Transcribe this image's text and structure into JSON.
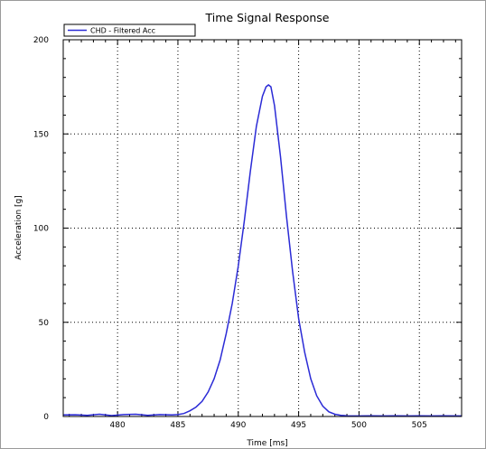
{
  "chart_data": {
    "type": "line",
    "title": "Time Signal Response",
    "xlabel": "Time [ms]",
    "ylabel": "Acceleration [g]",
    "xlim": [
      475.5,
      508.5
    ],
    "ylim": [
      0,
      200
    ],
    "x_ticks": [
      480,
      485,
      490,
      495,
      500,
      505
    ],
    "y_ticks": [
      0,
      50,
      100,
      150,
      200
    ],
    "grid": true,
    "grid_style": "dotted",
    "legend_position": "top-left",
    "series": [
      {
        "name": "CHD - Filtered Acc",
        "color": "#2b2bd6",
        "x": [
          475.5,
          476.5,
          477.5,
          478.5,
          479.5,
          480.5,
          481.5,
          482.5,
          483.5,
          484.5,
          485,
          485.5,
          486,
          486.5,
          487,
          487.5,
          488,
          488.5,
          489,
          489.5,
          490,
          490.5,
          491,
          491.5,
          492,
          492.3,
          492.5,
          492.7,
          493,
          493.5,
          494,
          494.5,
          495,
          495.5,
          496,
          496.5,
          497,
          497.5,
          498,
          498.5,
          499,
          500,
          501,
          502,
          503,
          504,
          505,
          506,
          507,
          508.5
        ],
        "y": [
          0.8,
          0.9,
          0.6,
          1.2,
          0.5,
          1.0,
          1.2,
          0.6,
          1.0,
          0.8,
          1.0,
          1.6,
          3,
          5,
          8,
          13,
          20,
          30,
          44,
          60,
          80,
          104,
          130,
          154,
          170,
          175,
          176,
          175,
          165,
          138,
          106,
          77,
          52,
          34,
          20,
          11,
          5.5,
          2.5,
          1.2,
          0.6,
          0.4,
          0.3,
          0.4,
          0.3,
          0.4,
          0.3,
          0.4,
          0.3,
          0.4,
          0.3
        ]
      }
    ]
  }
}
